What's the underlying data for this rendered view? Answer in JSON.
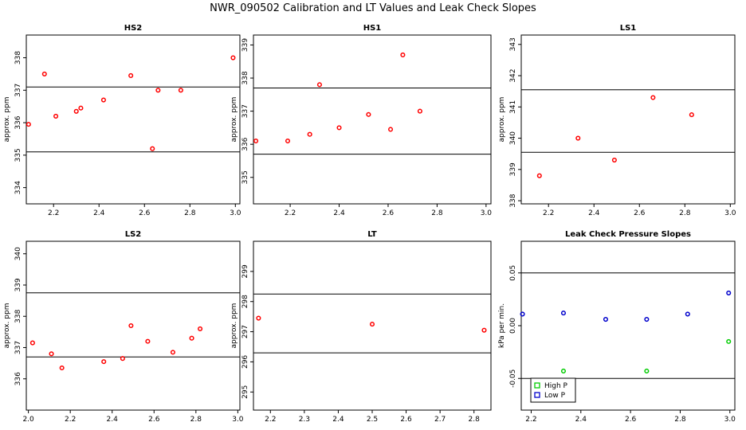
{
  "title": "NWR_090502  Calibration and LT Values and Leak Check Slopes",
  "chart_data": [
    {
      "type": "scatter",
      "title": "HS2",
      "ylabel": "approx. ppm",
      "xlim": [
        2.08,
        3.02
      ],
      "ylim": [
        333.5,
        338.7
      ],
      "xticks": [
        2.2,
        2.4,
        2.6,
        2.8,
        3.0
      ],
      "xticklabels": [
        "2.2",
        "2.4",
        "2.6",
        "2.8",
        "3.0"
      ],
      "yticks": [
        334,
        335,
        336,
        337,
        338
      ],
      "yticklabels": [
        "334",
        "335",
        "336",
        "337",
        "338"
      ],
      "hlines": [
        337.1,
        335.1
      ],
      "series": [
        {
          "color": "#ff0000",
          "points": [
            [
              2.09,
              335.95
            ],
            [
              2.16,
              337.5
            ],
            [
              2.21,
              336.2
            ],
            [
              2.3,
              336.35
            ],
            [
              2.32,
              336.45
            ],
            [
              2.42,
              336.7
            ],
            [
              2.54,
              337.45
            ],
            [
              2.635,
              335.2
            ],
            [
              2.66,
              337.0
            ],
            [
              2.76,
              337.0
            ],
            [
              2.99,
              338.0
            ]
          ]
        }
      ]
    },
    {
      "type": "scatter",
      "title": "HS1",
      "ylabel": "approx. ppm",
      "xlim": [
        2.05,
        3.02
      ],
      "ylim": [
        334.2,
        339.3
      ],
      "xticks": [
        2.2,
        2.4,
        2.6,
        2.8,
        3.0
      ],
      "xticklabels": [
        "2.2",
        "2.4",
        "2.6",
        "2.8",
        "3.0"
      ],
      "yticks": [
        335,
        336,
        337,
        338,
        339
      ],
      "yticklabels": [
        "335",
        "336",
        "337",
        "338",
        "339"
      ],
      "hlines": [
        337.7,
        335.7
      ],
      "series": [
        {
          "color": "#ff0000",
          "points": [
            [
              2.06,
              336.1
            ],
            [
              2.19,
              336.1
            ],
            [
              2.28,
              336.3
            ],
            [
              2.32,
              337.8
            ],
            [
              2.4,
              336.5
            ],
            [
              2.52,
              336.9
            ],
            [
              2.61,
              336.45
            ],
            [
              2.66,
              338.7
            ],
            [
              2.73,
              337.0
            ]
          ]
        }
      ]
    },
    {
      "type": "scatter",
      "title": "LS1",
      "ylabel": "approx. ppm",
      "xlim": [
        2.08,
        3.02
      ],
      "ylim": [
        337.9,
        343.3
      ],
      "xticks": [
        2.2,
        2.4,
        2.6,
        2.8,
        3.0
      ],
      "xticklabels": [
        "2.2",
        "2.4",
        "2.6",
        "2.8",
        "3.0"
      ],
      "yticks": [
        338,
        339,
        340,
        341,
        342,
        343
      ],
      "yticklabels": [
        "338",
        "339",
        "340",
        "341",
        "342",
        "343"
      ],
      "hlines": [
        341.55,
        339.55
      ],
      "series": [
        {
          "color": "#ff0000",
          "points": [
            [
              2.16,
              338.8
            ],
            [
              2.33,
              340.0
            ],
            [
              2.49,
              339.3
            ],
            [
              2.66,
              341.3
            ],
            [
              2.83,
              340.75
            ]
          ]
        }
      ]
    },
    {
      "type": "scatter",
      "title": "LS2",
      "ylabel": "approx. ppm",
      "xlim": [
        1.99,
        3.01
      ],
      "ylim": [
        335.0,
        340.4
      ],
      "xticks": [
        2.0,
        2.2,
        2.4,
        2.6,
        2.8,
        3.0
      ],
      "xticklabels": [
        "2.0",
        "2.2",
        "2.4",
        "2.6",
        "2.8",
        "3.0"
      ],
      "yticks": [
        336,
        337,
        338,
        339,
        340
      ],
      "yticklabels": [
        "336",
        "337",
        "338",
        "339",
        "340"
      ],
      "hlines": [
        338.75,
        336.7
      ],
      "series": [
        {
          "color": "#ff0000",
          "points": [
            [
              2.02,
              337.15
            ],
            [
              2.11,
              336.8
            ],
            [
              2.16,
              336.35
            ],
            [
              2.36,
              336.55
            ],
            [
              2.45,
              336.65
            ],
            [
              2.49,
              337.7
            ],
            [
              2.57,
              337.2
            ],
            [
              2.69,
              336.85
            ],
            [
              2.78,
              337.3
            ],
            [
              2.82,
              337.6
            ]
          ]
        }
      ]
    },
    {
      "type": "scatter",
      "title": "LT",
      "ylabel": "approx. ppm",
      "xlim": [
        2.15,
        2.85
      ],
      "ylim": [
        294.4,
        300.0
      ],
      "xticks": [
        2.2,
        2.3,
        2.4,
        2.5,
        2.6,
        2.7,
        2.8
      ],
      "xticklabels": [
        "2.2",
        "2.3",
        "2.4",
        "2.5",
        "2.6",
        "2.7",
        "2.8"
      ],
      "yticks": [
        295,
        296,
        297,
        298,
        299
      ],
      "yticklabels": [
        "295",
        "296",
        "297",
        "298",
        "299"
      ],
      "hlines": [
        298.25,
        296.3
      ],
      "series": [
        {
          "color": "#ff0000",
          "points": [
            [
              2.165,
              297.45
            ],
            [
              2.5,
              297.25
            ],
            [
              2.83,
              297.05
            ]
          ]
        }
      ]
    },
    {
      "type": "scatter",
      "title": "Leak Check Pressure Slopes",
      "ylabel": "kPa per min.",
      "xlim": [
        2.16,
        3.02
      ],
      "ylim": [
        -0.08,
        0.08
      ],
      "xticks": [
        2.2,
        2.4,
        2.6,
        2.8,
        3.0
      ],
      "xticklabels": [
        "2.2",
        "2.4",
        "2.6",
        "2.8",
        "3.0"
      ],
      "yticks": [
        -0.05,
        0.0,
        0.05
      ],
      "yticklabels": [
        "-0.05",
        "0.00",
        "0.05"
      ],
      "hlines": [
        0.05,
        -0.05
      ],
      "legend": {
        "position": "bottom-left",
        "entries": [
          {
            "label": "High P",
            "color": "#00cc00"
          },
          {
            "label": "Low P",
            "color": "#0000cc"
          }
        ]
      },
      "series": [
        {
          "name": "High P",
          "color": "#00cc00",
          "points": [
            [
              2.33,
              -0.043
            ],
            [
              2.665,
              -0.043
            ],
            [
              2.995,
              -0.015
            ]
          ]
        },
        {
          "name": "Low P",
          "color": "#0000cc",
          "points": [
            [
              2.165,
              0.011
            ],
            [
              2.33,
              0.012
            ],
            [
              2.5,
              0.006
            ],
            [
              2.665,
              0.006
            ],
            [
              2.83,
              0.011
            ],
            [
              2.995,
              0.031
            ]
          ]
        }
      ]
    }
  ]
}
